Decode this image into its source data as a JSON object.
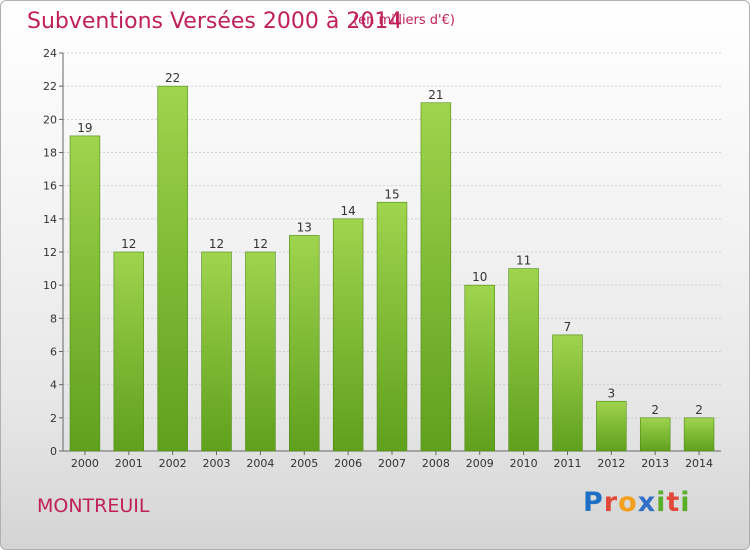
{
  "header": {
    "title": "Subventions Versées 2000 à 2014",
    "subtitle": "(en milliers d'€)"
  },
  "commune": "MONTREUIL",
  "logo": {
    "text": "Proxiti"
  },
  "colors": {
    "accent": "#c0205a",
    "bar_light": "#9fd44e",
    "bar_dark": "#5fa01c"
  },
  "chart_data": {
    "type": "bar",
    "title": "Subventions Versées 2000 à 2014",
    "subtitle": "(en milliers d'€)",
    "xlabel": "",
    "ylabel": "",
    "categories": [
      "2000",
      "2001",
      "2002",
      "2003",
      "2004",
      "2005",
      "2006",
      "2007",
      "2008",
      "2009",
      "2010",
      "2011",
      "2012",
      "2013",
      "2014"
    ],
    "values": [
      19,
      12,
      22,
      12,
      12,
      13,
      14,
      15,
      21,
      10,
      11,
      7,
      3,
      2,
      2
    ],
    "ylim": [
      0,
      24
    ],
    "yticks": [
      0,
      2,
      4,
      6,
      8,
      10,
      12,
      14,
      16,
      18,
      20,
      22,
      24
    ],
    "grid": true,
    "legend": "none"
  }
}
